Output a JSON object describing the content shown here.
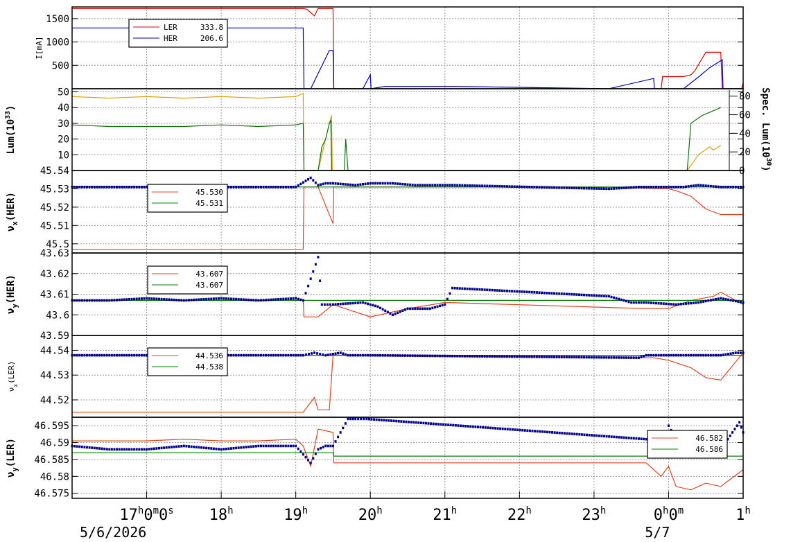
{
  "chart_data": [
    {
      "type": "line",
      "ylabel": "I[mA]",
      "ylim": [
        0,
        1750
      ],
      "yticks": [
        500,
        1000,
        1500
      ],
      "grid": true,
      "legend": "top-left",
      "x_unit": "hour",
      "series": [
        {
          "name": "LER",
          "legend_value": "333.8",
          "color": "#e00000",
          "x": [
            16.0,
            18.0,
            19.1,
            19.15,
            19.25,
            19.3,
            19.5,
            19.51,
            23.9,
            23.92,
            24.2,
            24.3,
            24.35,
            24.5,
            24.7,
            24.72,
            24.98,
            25.0
          ],
          "y": [
            1715,
            1715,
            1715,
            1700,
            1560,
            1715,
            1715,
            0,
            0,
            260,
            260,
            300,
            380,
            780,
            780,
            0,
            0,
            140
          ]
        },
        {
          "name": "HER",
          "legend_value": "206.6",
          "color": "#0000c0",
          "x": [
            16.0,
            19.1,
            19.11,
            19.2,
            19.45,
            19.5,
            19.51,
            19.9,
            20.0,
            20.01,
            20.2,
            21.1,
            23.2,
            23.8,
            23.81,
            24.2,
            24.4,
            24.55,
            24.72,
            24.73,
            25.0
          ],
          "y": [
            1300,
            1300,
            0,
            0,
            820,
            820,
            0,
            0,
            300,
            0,
            50,
            50,
            0,
            220,
            0,
            0,
            250,
            450,
            620,
            0,
            0
          ]
        }
      ]
    },
    {
      "type": "line",
      "ylabel": "Lum(10",
      "ylabel_sup": "33",
      "ylabel_tail": ")",
      "ylim": [
        0,
        52
      ],
      "yticks": [
        10,
        20,
        30,
        40,
        50
      ],
      "y2label": "Spec. Lum(10",
      "y2label_sup": "30",
      "y2label_tail": ")",
      "y2lim": [
        0,
        88
      ],
      "y2ticks": [
        0,
        20,
        40,
        60,
        80
      ],
      "grid": true,
      "series": [
        {
          "name": "",
          "color": "#e0a000",
          "x": [
            16.0,
            16.5,
            17.0,
            17.5,
            18.0,
            18.5,
            19.0,
            19.1,
            19.11,
            19.3,
            19.45,
            19.48,
            19.49,
            24.25,
            24.4,
            24.55,
            24.6,
            24.7
          ],
          "y": [
            47,
            46,
            47,
            46,
            47,
            46,
            47,
            49,
            0,
            0,
            30,
            35,
            0,
            0,
            10,
            15,
            13,
            16
          ]
        },
        {
          "name": "",
          "color": "#107010",
          "x": [
            16.0,
            16.5,
            17.0,
            17.5,
            18.0,
            18.5,
            19.0,
            19.1,
            19.11,
            19.3,
            19.35,
            19.4,
            19.45,
            19.47,
            19.48,
            19.65,
            19.67,
            19.7,
            24.25,
            24.3,
            24.45,
            24.6,
            24.7
          ],
          "y": [
            29,
            28,
            28,
            28,
            29,
            28,
            29,
            30,
            0,
            0,
            15,
            20,
            30,
            32,
            0,
            0,
            20,
            0,
            0,
            30,
            35,
            38,
            40
          ]
        }
      ]
    },
    {
      "type": "line",
      "ylabel": "ν",
      "ylabel_sub": "x",
      "ylabel_tail": "(HER)",
      "ylim": [
        45.495,
        45.54
      ],
      "yticks": [
        45.5,
        45.51,
        45.52,
        45.53,
        45.54
      ],
      "grid": true,
      "legend": "top-left",
      "series": [
        {
          "name": "",
          "legend_value": "45.530",
          "color": "#e04020",
          "x": [
            16.0,
            19.1,
            19.11,
            19.3,
            19.5,
            19.51,
            20.1,
            21.0,
            23.2,
            24.0,
            24.1,
            24.3,
            24.5,
            24.7,
            25.0
          ],
          "y": [
            45.497,
            45.497,
            45.531,
            45.531,
            45.511,
            45.531,
            45.531,
            45.531,
            45.531,
            45.53,
            45.529,
            45.526,
            45.519,
            45.516,
            45.516
          ]
        },
        {
          "name": "",
          "legend_value": "45.531",
          "color": "#008000",
          "x": [
            16.0,
            25.0
          ],
          "y": [
            45.531,
            45.531
          ]
        },
        {
          "name": "",
          "color": "#000090",
          "style": "dots",
          "x": [
            16.0,
            17.0,
            18.0,
            19.0,
            19.2,
            19.3,
            19.4,
            19.5,
            19.8,
            20.0,
            20.3,
            20.6,
            20.9,
            21.1,
            23.2,
            23.6,
            23.8,
            24.2,
            24.4,
            24.7,
            25.0
          ],
          "y": [
            45.531,
            45.531,
            45.531,
            45.531,
            45.536,
            45.532,
            45.533,
            45.533,
            45.532,
            45.533,
            45.533,
            45.532,
            45.532,
            45.532,
            45.53,
            45.531,
            45.531,
            45.531,
            45.532,
            45.531,
            45.531
          ]
        }
      ]
    },
    {
      "type": "line",
      "ylabel": "ν",
      "ylabel_sub": "y",
      "ylabel_tail": "(HER)",
      "ylim": [
        43.59,
        43.63
      ],
      "yticks": [
        43.59,
        43.6,
        43.61,
        43.62,
        43.63
      ],
      "grid": true,
      "legend": "top-left",
      "series": [
        {
          "name": "",
          "legend_value": "43.607",
          "color": "#e04020",
          "x": [
            16.0,
            19.1,
            19.11,
            19.3,
            19.5,
            20.0,
            20.5,
            21.0,
            23.7,
            24.0,
            24.3,
            24.6,
            24.7,
            25.0
          ],
          "y": [
            43.607,
            43.607,
            43.599,
            43.599,
            43.605,
            43.599,
            43.603,
            43.606,
            43.603,
            43.603,
            43.607,
            43.609,
            43.611,
            43.605
          ]
        },
        {
          "name": "",
          "legend_value": "43.607",
          "color": "#008000",
          "x": [
            16.0,
            25.0
          ],
          "y": [
            43.607,
            43.607
          ]
        },
        {
          "name": "",
          "color": "#000090",
          "style": "dots",
          "x": [
            16.0,
            16.5,
            17.0,
            17.5,
            18.0,
            18.5,
            19.0,
            19.1,
            19.3,
            19.35,
            19.5,
            19.9,
            20.1,
            20.3,
            20.5,
            20.8,
            21.0,
            21.1,
            23.2,
            23.5,
            23.7,
            24.1,
            24.4,
            24.7,
            25.0
          ],
          "y": [
            43.607,
            43.607,
            43.608,
            43.607,
            43.608,
            43.607,
            43.608,
            43.607,
            43.628,
            43.605,
            43.605,
            43.606,
            43.604,
            43.6,
            43.603,
            43.603,
            43.605,
            43.613,
            43.609,
            43.606,
            43.606,
            43.605,
            43.606,
            43.608,
            43.606
          ]
        }
      ]
    },
    {
      "type": "line",
      "ylabel": "ν",
      "ylabel_sub": "x",
      "ylabel_tail": "(LER)",
      "ylim": [
        44.513,
        44.546
      ],
      "yticks": [
        44.52,
        44.53,
        44.54
      ],
      "grid": true,
      "legend": "top-left",
      "series": [
        {
          "name": "",
          "legend_value": "44.536",
          "color": "#e04020",
          "x": [
            16.0,
            19.1,
            19.2,
            19.25,
            19.3,
            19.45,
            19.5,
            19.51,
            23.6,
            23.8,
            24.0,
            24.3,
            24.5,
            24.7,
            25.0
          ],
          "y": [
            44.515,
            44.515,
            44.519,
            44.521,
            44.516,
            44.516,
            44.538,
            44.538,
            44.537,
            44.537,
            44.536,
            44.533,
            44.529,
            44.528,
            44.539
          ]
        },
        {
          "name": "",
          "legend_value": "44.538",
          "color": "#008000",
          "x": [
            16.0,
            25.0
          ],
          "y": [
            44.538,
            44.538
          ]
        },
        {
          "name": "",
          "color": "#000090",
          "style": "dots",
          "x": [
            16.0,
            17.0,
            18.0,
            19.0,
            19.1,
            19.25,
            19.4,
            19.6,
            19.7,
            20.0,
            23.6,
            23.7,
            23.8,
            24.0,
            24.3,
            24.6,
            24.7,
            24.9,
            25.0
          ],
          "y": [
            44.538,
            44.538,
            44.538,
            44.538,
            44.538,
            44.539,
            44.538,
            44.539,
            44.538,
            44.538,
            44.537,
            44.538,
            44.538,
            44.538,
            44.538,
            44.538,
            44.538,
            44.539,
            44.539
          ]
        }
      ]
    },
    {
      "type": "line",
      "ylabel": "ν",
      "ylabel_sub": "y",
      "ylabel_tail": "(LER)",
      "ylim": [
        46.5735,
        46.5975
      ],
      "yticks": [
        46.575,
        46.58,
        46.585,
        46.59,
        46.595
      ],
      "grid": true,
      "legend": "top-right",
      "series": [
        {
          "name": "",
          "legend_value": "46.582",
          "color": "#e04020",
          "x": [
            16.0,
            17.0,
            17.5,
            18.0,
            18.5,
            19.0,
            19.1,
            19.2,
            19.3,
            19.5,
            19.51,
            23.7,
            23.9,
            24.0,
            24.1,
            24.3,
            24.5,
            24.7,
            25.0
          ],
          "y": [
            46.5905,
            46.5905,
            46.591,
            46.5905,
            46.5905,
            46.591,
            46.589,
            46.583,
            46.594,
            46.593,
            46.584,
            46.584,
            46.58,
            46.583,
            46.577,
            46.576,
            46.578,
            46.577,
            46.582
          ]
        },
        {
          "name": "",
          "legend_value": "46.586",
          "color": "#008000",
          "x": [
            16.0,
            19.5,
            19.51,
            25.0
          ],
          "y": [
            46.587,
            46.587,
            46.586,
            46.586
          ]
        },
        {
          "name": "",
          "color": "#000090",
          "style": "dots",
          "x": [
            16.0,
            16.5,
            17.0,
            17.5,
            18.0,
            18.5,
            19.0,
            19.2,
            19.3,
            19.4,
            19.5,
            19.7,
            19.8,
            19.95,
            23.7,
            23.9,
            24.0,
            24.2,
            24.4,
            24.7,
            24.95,
            25.0
          ],
          "y": [
            46.589,
            46.588,
            46.588,
            46.589,
            46.588,
            46.589,
            46.589,
            46.584,
            46.588,
            46.589,
            46.589,
            46.597,
            46.597,
            46.597,
            46.591,
            46.586,
            46.595,
            46.587,
            46.589,
            46.588,
            46.596,
            46.593
          ]
        }
      ]
    }
  ],
  "x_axis": {
    "range": [
      16.0,
      25.0
    ],
    "ticks": [
      {
        "x": 17,
        "text": "17",
        "sup": "h",
        "rest": "0",
        "rest_sup": "m",
        "rest2": "0",
        "rest2_sup": "s"
      },
      {
        "x": 18,
        "text": "18",
        "sup": "h"
      },
      {
        "x": 19,
        "text": "19",
        "sup": "h"
      },
      {
        "x": 20,
        "text": "20",
        "sup": "h"
      },
      {
        "x": 21,
        "text": "21",
        "sup": "h"
      },
      {
        "x": 22,
        "text": "22",
        "sup": "h"
      },
      {
        "x": 23,
        "text": "23",
        "sup": "h"
      },
      {
        "x": 24,
        "text": "0",
        "sup": "h",
        "rest": "0",
        "rest_sup": "m"
      },
      {
        "x": 25,
        "text": "1",
        "sup": "h"
      }
    ],
    "dates": [
      {
        "x": 16.55,
        "text": "5/6/2026"
      },
      {
        "x": 23.85,
        "text": "5/7"
      }
    ]
  }
}
